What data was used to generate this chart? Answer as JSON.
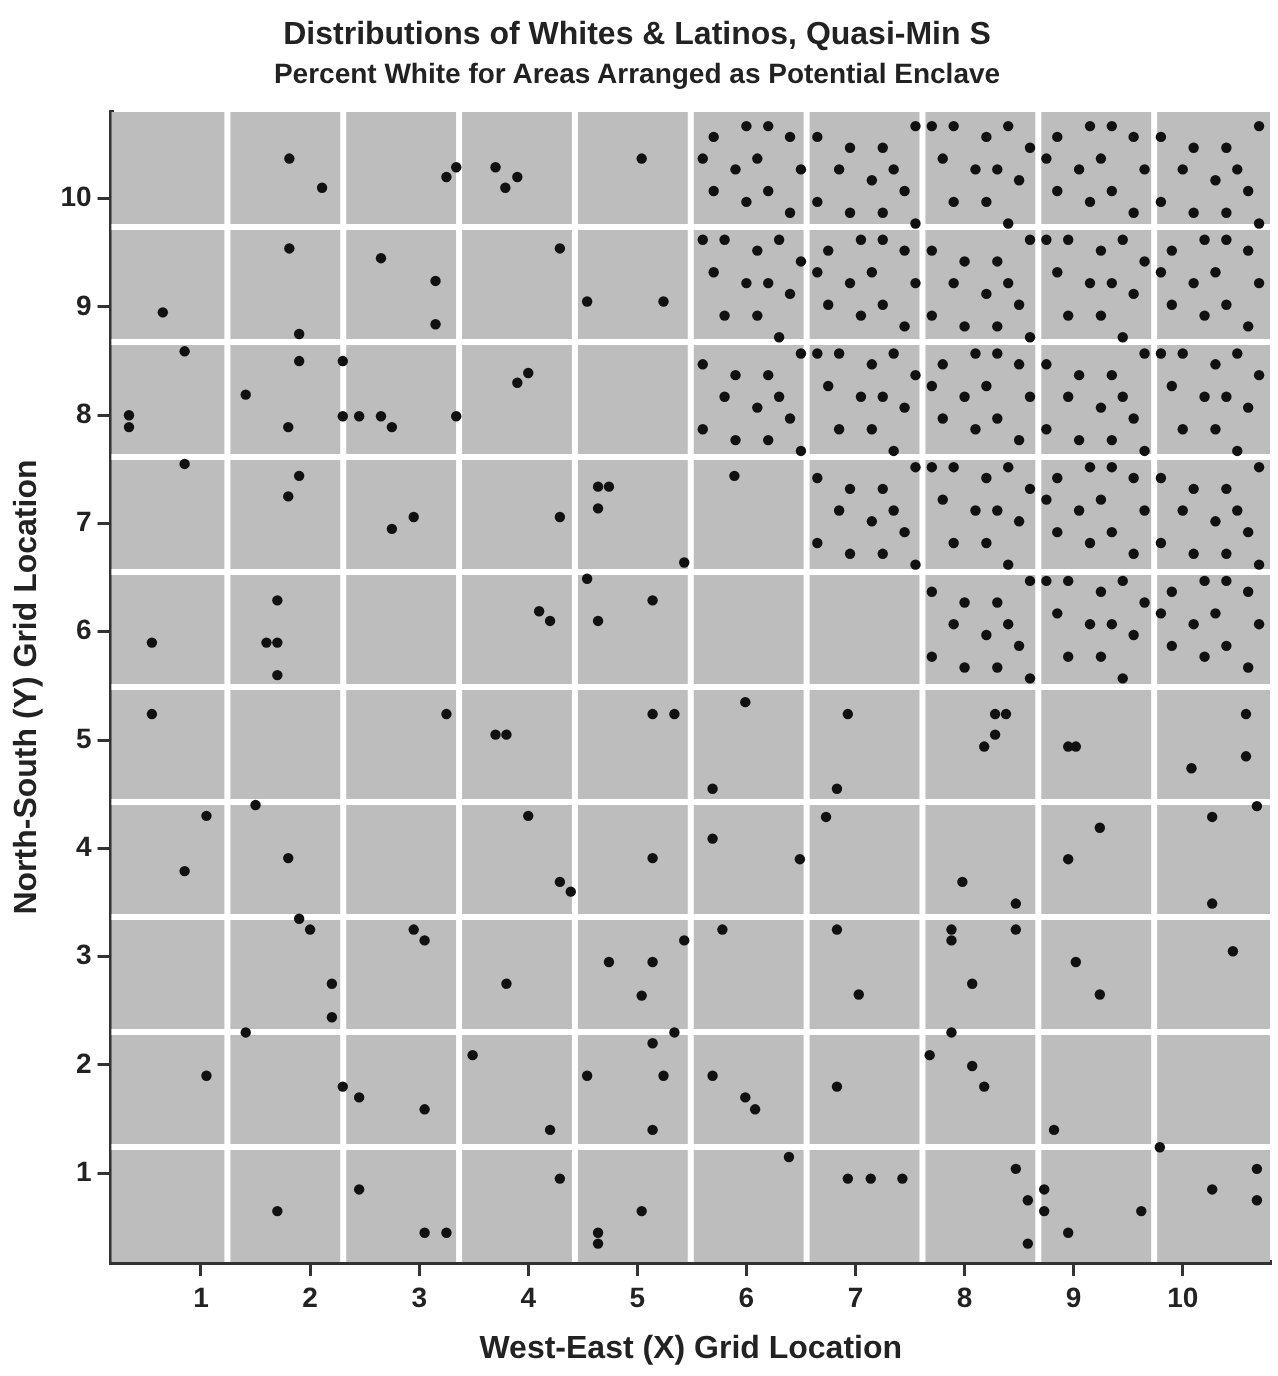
{
  "chart_data": {
    "type": "scatter",
    "title": "Distributions of Whites & Latinos, Quasi-Min S",
    "subtitle": "Percent White for Areas Arranged as Potential Enclave",
    "xlabel": "West-East (X) Grid Location",
    "ylabel": "North-South (Y) Grid Location",
    "marker": "circle",
    "xlim": [
      0.18,
      10.8
    ],
    "ylim": [
      0.18,
      10.8
    ],
    "xticks": [
      1,
      2,
      3,
      4,
      5,
      6,
      7,
      8,
      9,
      10
    ],
    "yticks": [
      1,
      2,
      3,
      4,
      5,
      6,
      7,
      8,
      9,
      10
    ],
    "series": [
      {
        "color": "#111111",
        "x": [
          1.81,
          2.11,
          3.25,
          3.34,
          3.7,
          3.79,
          3.9,
          5.04,
          1.81,
          0.65,
          2.65,
          3.15,
          3.15,
          4.29,
          4.54,
          5.24,
          0.85,
          1.9,
          1.9,
          2.3,
          1.41,
          0.34,
          0.34,
          1.8,
          2.3,
          2.45,
          2.65,
          2.75,
          3.34,
          3.9,
          4.0,
          0.85,
          1.9,
          1.8,
          4.64,
          4.64,
          4.74,
          2.95,
          4.29,
          2.75,
          5.43,
          0.55,
          1.7,
          1.6,
          1.7,
          1.7,
          4.1,
          4.2,
          4.54,
          4.64,
          5.14,
          0.55,
          3.25,
          3.7,
          3.8,
          5.14,
          5.34,
          1.05,
          1.5,
          1.8,
          4.0,
          5.14,
          0.85,
          4.29,
          4.39,
          1.9,
          2.0,
          2.2,
          2.2,
          2.95,
          3.05,
          3.8,
          4.74,
          5.14,
          5.43,
          5.04,
          1.41,
          1.05,
          2.3,
          2.45,
          3.05,
          3.49,
          4.2,
          4.54,
          5.14,
          5.34,
          5.24,
          5.14,
          1.7,
          2.45,
          3.05,
          3.25,
          4.29,
          5.04,
          4.64,
          4.64,
          6.49,
          7.98,
          8.47,
          8.95,
          10.27,
          5.78,
          6.83,
          7.03,
          7.88,
          7.88,
          8.47,
          8.07,
          9.02,
          9.24,
          10.46,
          5.69,
          5.99,
          6.08,
          6.83,
          7.88,
          7.68,
          8.07,
          8.18,
          8.82,
          6.39,
          6.93,
          7.14,
          7.43,
          8.47,
          8.58,
          8.58,
          8.73,
          8.73,
          8.95,
          9.62,
          9.79,
          10.27,
          10.68,
          10.68,
          5.99,
          5.69,
          6.93,
          6.83,
          8.28,
          8.38,
          8.28,
          8.18,
          8.95,
          9.02,
          10.58,
          10.58,
          10.08,
          5.69,
          6.73,
          9.24,
          10.27,
          10.68,
          5.89
        ],
        "values": [
          10.37,
          10.1,
          10.2,
          10.29,
          10.29,
          10.1,
          10.2,
          10.37,
          9.54,
          8.95,
          9.45,
          9.24,
          8.84,
          9.54,
          9.05,
          9.05,
          8.59,
          8.75,
          8.5,
          8.5,
          8.19,
          8.0,
          7.89,
          7.89,
          7.99,
          7.99,
          7.99,
          7.89,
          7.99,
          8.3,
          8.39,
          7.55,
          7.44,
          7.25,
          7.14,
          7.34,
          7.34,
          7.06,
          7.06,
          6.95,
          6.64,
          5.9,
          6.29,
          5.9,
          5.9,
          5.6,
          6.19,
          6.1,
          6.49,
          6.1,
          6.29,
          5.24,
          5.24,
          5.05,
          5.05,
          5.24,
          5.24,
          4.3,
          4.4,
          3.91,
          4.3,
          3.91,
          3.79,
          3.69,
          3.6,
          3.35,
          3.25,
          2.75,
          2.44,
          3.25,
          3.15,
          2.75,
          2.95,
          2.95,
          3.15,
          2.64,
          2.3,
          1.9,
          1.8,
          1.7,
          1.59,
          2.09,
          1.4,
          1.9,
          2.2,
          2.3,
          1.9,
          1.4,
          0.65,
          0.85,
          0.45,
          0.45,
          0.95,
          0.65,
          0.45,
          0.35,
          3.9,
          3.69,
          3.49,
          3.9,
          3.49,
          3.25,
          3.25,
          2.65,
          3.25,
          3.15,
          3.25,
          2.75,
          2.95,
          2.65,
          3.05,
          1.9,
          1.7,
          1.59,
          1.8,
          2.3,
          2.09,
          1.99,
          1.8,
          1.4,
          1.15,
          0.95,
          0.95,
          0.95,
          1.04,
          0.75,
          0.35,
          0.85,
          0.65,
          0.45,
          0.65,
          1.24,
          0.85,
          1.04,
          0.75,
          5.35,
          4.55,
          5.24,
          4.55,
          5.24,
          5.24,
          5.05,
          4.94,
          4.94,
          4.94,
          5.24,
          4.85,
          4.74,
          4.09,
          4.29,
          4.19,
          4.29,
          4.39,
          7.44
        ]
      },
      {
        "color": "#111111",
        "x": [
          5.7,
          6.0,
          6.2,
          6.4,
          5.6,
          5.9,
          6.1,
          6.5,
          5.7,
          6.0,
          6.2,
          6.4,
          6.65,
          6.95,
          7.25,
          7.55,
          6.85,
          7.15,
          7.35,
          6.65,
          6.95,
          7.25,
          7.45,
          7.55,
          7.7,
          7.9,
          8.2,
          8.4,
          8.6,
          7.8,
          8.1,
          8.3,
          8.5,
          7.9,
          8.2,
          8.4,
          8.85,
          9.15,
          9.35,
          9.55,
          8.75,
          9.05,
          9.25,
          9.65,
          8.85,
          9.15,
          9.35,
          9.55,
          9.8,
          10.1,
          10.4,
          10.7,
          10.0,
          10.3,
          10.5,
          9.8,
          10.1,
          10.4,
          10.6,
          10.7,
          5.6,
          5.8,
          6.1,
          6.3,
          6.5,
          5.7,
          6.0,
          6.2,
          6.4,
          5.8,
          6.1,
          6.3,
          6.75,
          7.05,
          7.25,
          7.45,
          6.65,
          6.95,
          7.15,
          7.55,
          6.75,
          7.05,
          7.25,
          7.45,
          7.7,
          8.0,
          8.3,
          8.6,
          7.9,
          8.2,
          8.4,
          7.7,
          8.0,
          8.3,
          8.5,
          8.6,
          8.75,
          8.95,
          9.25,
          9.45,
          9.65,
          8.85,
          9.15,
          9.35,
          9.55,
          8.95,
          9.25,
          9.45,
          9.9,
          10.2,
          10.4,
          10.6,
          9.8,
          10.1,
          10.3,
          10.7,
          9.9,
          10.2,
          10.4,
          10.6,
          5.6,
          5.9,
          6.2,
          6.5,
          5.8,
          6.1,
          6.3,
          5.6,
          5.9,
          6.2,
          6.4,
          6.5,
          6.65,
          6.85,
          7.15,
          7.35,
          7.55,
          6.75,
          7.05,
          7.25,
          7.45,
          6.85,
          7.15,
          7.35,
          7.8,
          8.1,
          8.3,
          8.5,
          7.7,
          8.0,
          8.2,
          8.6,
          7.8,
          8.1,
          8.3,
          8.5,
          8.75,
          9.05,
          9.35,
          9.65,
          8.95,
          9.25,
          9.45,
          8.75,
          9.05,
          9.35,
          9.55,
          9.65,
          9.8,
          10.0,
          10.3,
          10.5,
          10.7,
          9.9,
          10.2,
          10.4,
          10.6,
          10.0,
          10.3,
          10.5,
          6.65,
          6.95,
          7.25,
          7.55,
          6.85,
          7.15,
          7.35,
          6.65,
          6.95,
          7.25,
          7.45,
          7.55,
          7.7,
          7.9,
          8.2,
          8.4,
          8.6,
          7.8,
          8.1,
          8.3,
          8.5,
          7.9,
          8.2,
          8.4,
          8.85,
          9.15,
          9.35,
          9.55,
          8.75,
          9.05,
          9.25,
          9.65,
          8.85,
          9.15,
          9.35,
          9.55,
          9.8,
          10.1,
          10.4,
          10.7,
          10.0,
          10.3,
          10.5,
          9.8,
          10.1,
          10.4,
          10.6,
          10.7,
          7.7,
          8.0,
          8.3,
          8.6,
          7.9,
          8.2,
          8.4,
          7.7,
          8.0,
          8.3,
          8.5,
          8.6,
          8.75,
          8.95,
          9.25,
          9.45,
          9.65,
          8.85,
          9.15,
          9.35,
          9.55,
          8.95,
          9.25,
          9.45,
          9.9,
          10.2,
          10.4,
          10.6,
          9.8,
          10.1,
          10.3,
          10.7,
          9.9,
          10.2,
          10.4,
          10.6
        ],
        "values": [
          10.57,
          10.67,
          10.67,
          10.57,
          10.37,
          10.27,
          10.37,
          10.27,
          10.07,
          9.97,
          10.07,
          9.87,
          10.57,
          10.47,
          10.47,
          10.67,
          10.27,
          10.17,
          10.27,
          9.97,
          9.87,
          9.87,
          10.07,
          9.77,
          10.67,
          10.67,
          10.57,
          10.67,
          10.47,
          10.37,
          10.27,
          10.27,
          10.17,
          9.97,
          9.97,
          9.77,
          10.57,
          10.67,
          10.67,
          10.57,
          10.37,
          10.27,
          10.37,
          10.27,
          10.07,
          9.97,
          10.07,
          9.87,
          10.57,
          10.47,
          10.47,
          10.67,
          10.27,
          10.17,
          10.27,
          9.97,
          9.87,
          9.87,
          10.07,
          9.77,
          9.62,
          9.62,
          9.52,
          9.62,
          9.42,
          9.32,
          9.22,
          9.22,
          9.12,
          8.92,
          8.92,
          8.72,
          9.52,
          9.62,
          9.62,
          9.52,
          9.32,
          9.22,
          9.32,
          9.22,
          9.02,
          8.92,
          9.02,
          8.82,
          9.52,
          9.42,
          9.42,
          9.62,
          9.22,
          9.12,
          9.22,
          8.92,
          8.82,
          8.82,
          9.02,
          8.72,
          9.62,
          9.62,
          9.52,
          9.62,
          9.42,
          9.32,
          9.22,
          9.22,
          9.12,
          8.92,
          8.92,
          8.72,
          9.52,
          9.62,
          9.62,
          9.52,
          9.32,
          9.22,
          9.32,
          9.22,
          9.02,
          8.92,
          9.02,
          8.82,
          8.47,
          8.37,
          8.37,
          8.57,
          8.17,
          8.07,
          8.17,
          7.87,
          7.77,
          7.77,
          7.97,
          7.67,
          8.57,
          8.57,
          8.47,
          8.57,
          8.37,
          8.27,
          8.17,
          8.17,
          8.07,
          7.87,
          7.87,
          7.67,
          8.47,
          8.57,
          8.57,
          8.47,
          8.27,
          8.17,
          8.27,
          8.17,
          7.97,
          7.87,
          7.97,
          7.77,
          8.47,
          8.37,
          8.37,
          8.57,
          8.17,
          8.07,
          8.17,
          7.87,
          7.77,
          7.77,
          7.97,
          7.67,
          8.57,
          8.57,
          8.47,
          8.57,
          8.37,
          8.27,
          8.17,
          8.17,
          8.07,
          7.87,
          7.87,
          7.67,
          7.42,
          7.32,
          7.32,
          7.52,
          7.12,
          7.02,
          7.12,
          6.82,
          6.72,
          6.72,
          6.92,
          6.62,
          7.52,
          7.52,
          7.42,
          7.52,
          7.32,
          7.22,
          7.12,
          7.12,
          7.02,
          6.82,
          6.82,
          6.62,
          7.42,
          7.52,
          7.52,
          7.42,
          7.22,
          7.12,
          7.22,
          7.12,
          6.92,
          6.82,
          6.92,
          6.72,
          7.42,
          7.32,
          7.32,
          7.52,
          7.12,
          7.02,
          7.12,
          6.82,
          6.72,
          6.72,
          6.92,
          6.62,
          6.37,
          6.27,
          6.27,
          6.47,
          6.07,
          5.97,
          6.07,
          5.77,
          5.67,
          5.67,
          5.87,
          5.57,
          6.47,
          6.47,
          6.37,
          6.47,
          6.27,
          6.17,
          6.07,
          6.07,
          5.97,
          5.77,
          5.77,
          5.57,
          6.37,
          6.47,
          6.47,
          6.37,
          6.17,
          6.07,
          6.17,
          6.07,
          5.87,
          5.77,
          5.87,
          5.67
        ]
      }
    ]
  }
}
